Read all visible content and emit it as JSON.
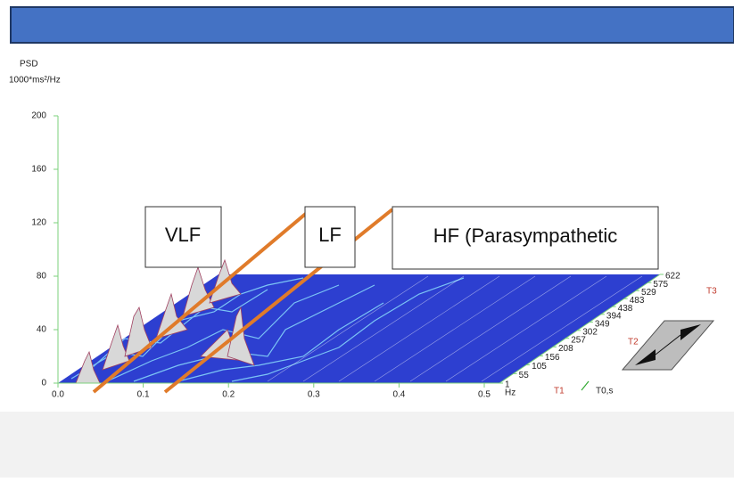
{
  "plot": {
    "y_label": "PSD",
    "y_unit": "1000*ms²/Hz",
    "yticks": [
      0,
      40,
      80,
      120,
      160,
      200
    ],
    "ylim": [
      0,
      200
    ],
    "xticks": [
      {
        "value": 0,
        "label": "0.0"
      },
      0.1,
      0.2,
      0.3,
      0.4,
      0.5
    ],
    "xlim": [
      0,
      0.5
    ],
    "x_unit": "Hz",
    "depth_ticks": [
      1,
      55,
      105,
      156,
      208,
      257,
      302,
      349,
      394,
      438,
      483,
      529,
      575,
      622
    ],
    "depth_lim": [
      1,
      622
    ],
    "depth_markers": [
      "T1",
      "T2",
      "T3"
    ],
    "depth_label": "T0,s"
  },
  "annotations": [
    "VLF",
    "LF",
    "HF (Parasympathetic"
  ]
}
